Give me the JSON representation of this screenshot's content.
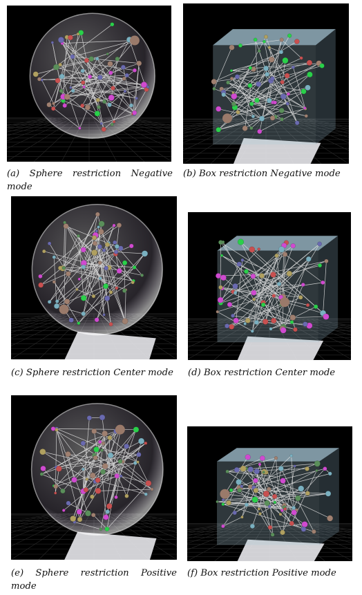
{
  "figures": [
    {
      "id": "a",
      "label": "(a)",
      "caption": "Sphere restriction Negative mode",
      "shape": "sphere"
    },
    {
      "id": "b",
      "label": "(b)",
      "caption": "Box restriction Negative mode",
      "shape": "box"
    },
    {
      "id": "c",
      "label": "(c)",
      "caption": "Sphere restriction Center mode",
      "shape": "sphere"
    },
    {
      "id": "d",
      "label": "(d)",
      "caption": "Box restriction Center mode",
      "shape": "box"
    },
    {
      "id": "e",
      "label": "(e)",
      "caption": "Sphere restriction Positive mode",
      "shape": "sphere"
    },
    {
      "id": "f",
      "label": "(f)",
      "caption": "Box restriction Positive mode",
      "shape": "box"
    }
  ],
  "colors": {
    "background": "#000000",
    "node_palette": [
      "#c85050",
      "#5a8f5a",
      "#6a6ab0",
      "#d04ad0",
      "#2ad04a",
      "#a08070",
      "#7ab0c0",
      "#b0a060"
    ],
    "edge": "#e8e8e8",
    "sphere_tint": "#d8c8e8",
    "box_tint": "#a8c8d8"
  }
}
